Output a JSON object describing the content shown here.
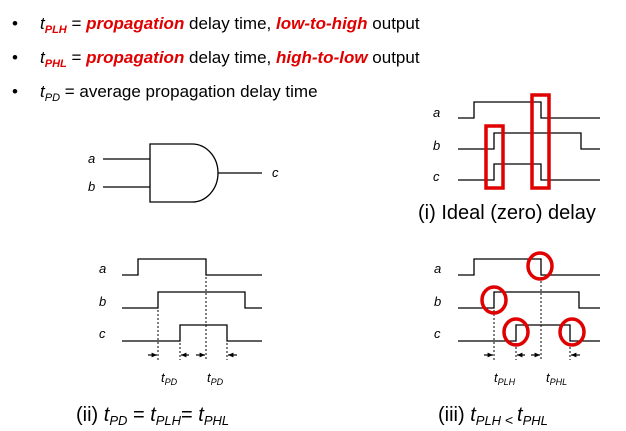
{
  "bullets": [
    {
      "symbol": "t",
      "sub": "PLH",
      "eq": " = ",
      "emph1": "propagation",
      "mid": " delay time, ",
      "emph2": "low-to-high",
      "tail": " output"
    },
    {
      "symbol": "t",
      "sub": "PHL",
      "eq": " = ",
      "emph1": "propagation",
      "mid": " delay time, ",
      "emph2": "high-to-low",
      "tail": " output"
    },
    {
      "symbol": "t",
      "sub": "PD",
      "eq": " = ",
      "emph1": "",
      "mid": "average propagation delay time",
      "emph2": "",
      "tail": ""
    }
  ],
  "bullet_char": "•",
  "gate": {
    "in_a": "a",
    "in_b": "b",
    "out_c": "c"
  },
  "panel_i": {
    "labels": [
      "a",
      "b",
      "c"
    ],
    "caption": "(i) Ideal (zero) delay"
  },
  "panel_ii": {
    "labels": [
      "a",
      "b",
      "c"
    ],
    "t": "t",
    "delay_sub_left": "PD",
    "delay_sub_right": "PD",
    "caption": {
      "open": "(ii) ",
      "t1": "t",
      "s1": "PD",
      "eq1": " = ",
      "t2": "t",
      "s2": "PLH",
      "eq2": "= ",
      "t3": "t",
      "s3": "PHL"
    }
  },
  "panel_iii": {
    "labels": [
      "a",
      "b",
      "c"
    ],
    "t": "t",
    "delay_sub_left": "PLH",
    "delay_sub_right": "PHL",
    "caption": {
      "open": "(iii) ",
      "t1": "t",
      "s1": "PLH",
      "op": " < ",
      "t2": "t",
      "s2": "PHL"
    }
  },
  "colors": {
    "highlight": "#e00000",
    "line": "#000000"
  }
}
